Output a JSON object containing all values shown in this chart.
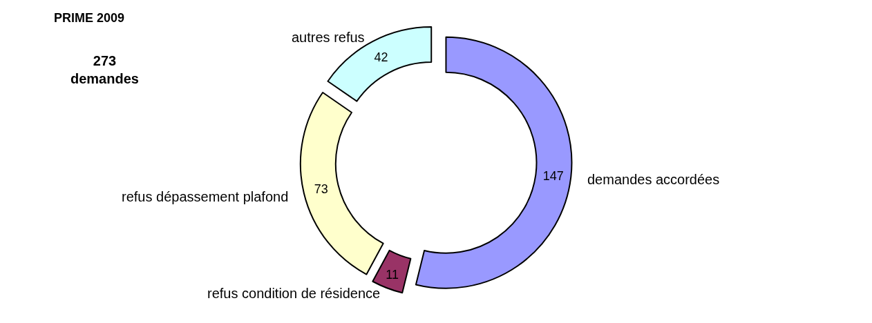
{
  "chart_data": {
    "type": "donut",
    "title": "PRIME 2009",
    "subtitle": "273\ndemandes",
    "categories": [
      "demandes accordées",
      "refus condition de résidence",
      "refus dépassement plafond",
      "autres refus"
    ],
    "values": [
      147,
      11,
      73,
      42
    ],
    "colors": [
      "#9999ff",
      "#993366",
      "#ffffcc",
      "#ccffff"
    ],
    "data_labels": true,
    "legend": false
  }
}
